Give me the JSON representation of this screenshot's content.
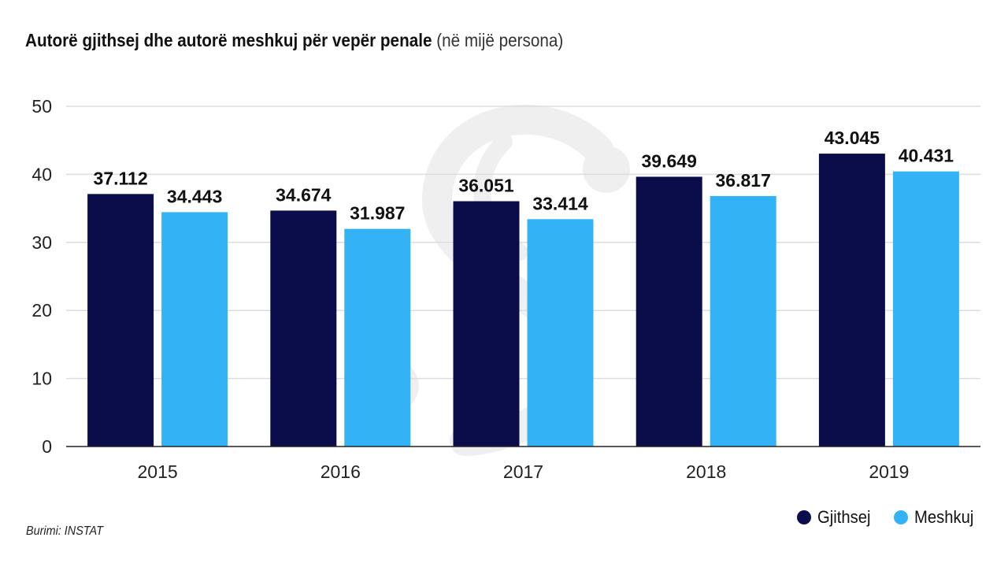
{
  "chart_data": {
    "type": "bar",
    "title": "Autorë gjithsej dhe autorë meshkuj për vepër penale",
    "subtitle": "(në mijë persona)",
    "categories": [
      "2015",
      "2016",
      "2017",
      "2018",
      "2019"
    ],
    "series": [
      {
        "name": "Gjithsej",
        "color": "#0b0c4a",
        "values": [
          37.112,
          34.674,
          36.051,
          39.649,
          43.045
        ],
        "labels": [
          "37.112",
          "34.674",
          "36.051",
          "39.649",
          "43.045"
        ]
      },
      {
        "name": "Meshkuj",
        "color": "#33b3f5",
        "values": [
          34.443,
          31.987,
          33.414,
          36.817,
          40.431
        ],
        "labels": [
          "34.443",
          "31.987",
          "33.414",
          "36.817",
          "40.431"
        ]
      }
    ],
    "yticks": [
      "0",
      "10",
      "20",
      "30",
      "40",
      "50"
    ],
    "ylim": [
      0,
      50
    ],
    "grid": true,
    "legend_position": "bottom-right"
  },
  "source": "Burimi: INSTAT"
}
